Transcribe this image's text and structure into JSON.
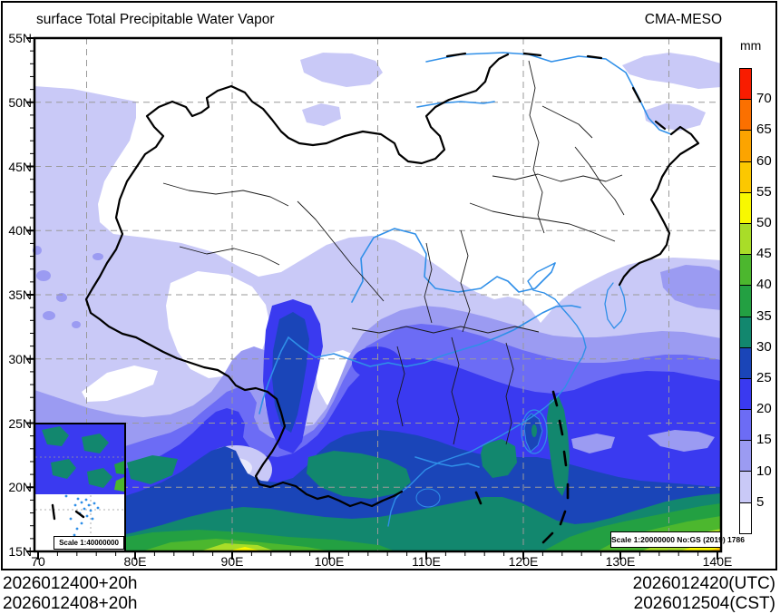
{
  "header": {
    "title": "surface Total Precipitable Water Vapor",
    "model": "CMA-MESO"
  },
  "colorbar": {
    "unit": "mm",
    "tick_labels": [
      "70",
      "65",
      "60",
      "55",
      "50",
      "45",
      "40",
      "35",
      "30",
      "25",
      "20",
      "15",
      "10",
      "5"
    ],
    "colors_top_to_bottom": [
      "#f81c00",
      "#fb7000",
      "#fca400",
      "#fcc800",
      "#f8f800",
      "#a9dd28",
      "#4cb72e",
      "#23a042",
      "#12876e",
      "#1a45b8",
      "#3a3af0",
      "#6c6cf5",
      "#9b9bf2",
      "#c9c9f7",
      "#ffffff"
    ]
  },
  "axes": {
    "y_labels": [
      "55N",
      "50N",
      "45N",
      "40N",
      "35N",
      "30N",
      "25N",
      "20N",
      "15N"
    ],
    "x_labels": [
      "70",
      "80E",
      "90E",
      "100E",
      "110E",
      "120E",
      "130E",
      "140E"
    ]
  },
  "footer": {
    "run1": "2026012400+20h",
    "run2": "2026012408+20h",
    "valid_utc": "2026012420(UTC)",
    "valid_cst": "2026012504(CST)"
  },
  "scales": {
    "main": "Scale 1:20000000 No:GS (2019) 1786",
    "inset": "Scale 1:40000000"
  },
  "palette": {
    "lt5": "#ffffff",
    "v5": "#c9c9f7",
    "v10": "#9b9bf2",
    "v15": "#6c6cf5",
    "v20": "#3a3af0",
    "v25": "#1a45b8",
    "v30": "#12876e",
    "v35": "#23a042",
    "v40": "#4cb72e",
    "v45": "#a9dd28",
    "v50": "#f8f800",
    "v55": "#fcc800",
    "v60": "#fca400",
    "pale": "#e9e9fc",
    "river": "#2f8fe8",
    "grid": "#9a9a9a",
    "border": "#000000"
  }
}
